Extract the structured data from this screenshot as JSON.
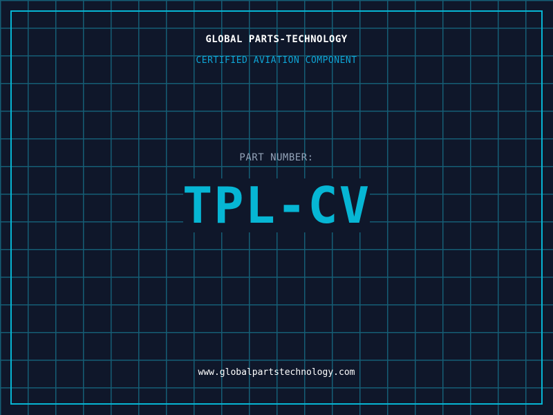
{
  "header": {
    "company": "GLOBAL PARTS-TECHNOLOGY",
    "subtitle": "CERTIFIED AVIATION COMPONENT"
  },
  "part": {
    "label": "PART NUMBER:",
    "number": "TPL-CV"
  },
  "footer": {
    "url": "www.globalpartstechnology.com"
  },
  "colors": {
    "background": "#0f172a",
    "grid": "#155e75",
    "accent": "#06b6d4",
    "label": "#94a3b8"
  }
}
